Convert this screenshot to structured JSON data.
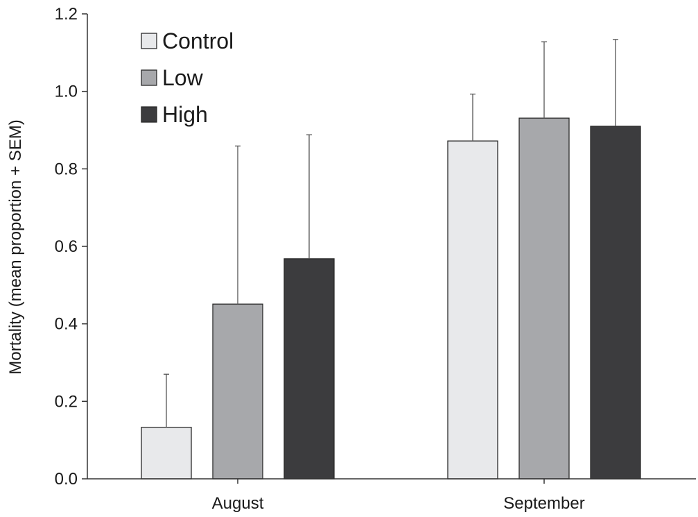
{
  "chart_data": {
    "type": "bar",
    "ylabel": "Mortality (mean proportion + SEM)",
    "xlabel": "",
    "categories": [
      "August",
      "September"
    ],
    "ylim": [
      0,
      1.2
    ],
    "yticks": [
      "0.0",
      "0.2",
      "0.4",
      "0.6",
      "0.8",
      "1.0",
      "1.2"
    ],
    "error_bars": "upper SEM",
    "legend_position": "top-left",
    "grid": false,
    "series": [
      {
        "name": "Control",
        "color": "#e8e9eb",
        "values": [
          0.133,
          0.872
        ],
        "err": [
          0.137,
          0.121
        ]
      },
      {
        "name": "Low",
        "color": "#a7a8ab",
        "values": [
          0.451,
          0.931
        ],
        "err": [
          0.408,
          0.197
        ]
      },
      {
        "name": "High",
        "color": "#3c3c3e",
        "values": [
          0.568,
          0.91
        ],
        "err": [
          0.32,
          0.224
        ]
      }
    ]
  }
}
